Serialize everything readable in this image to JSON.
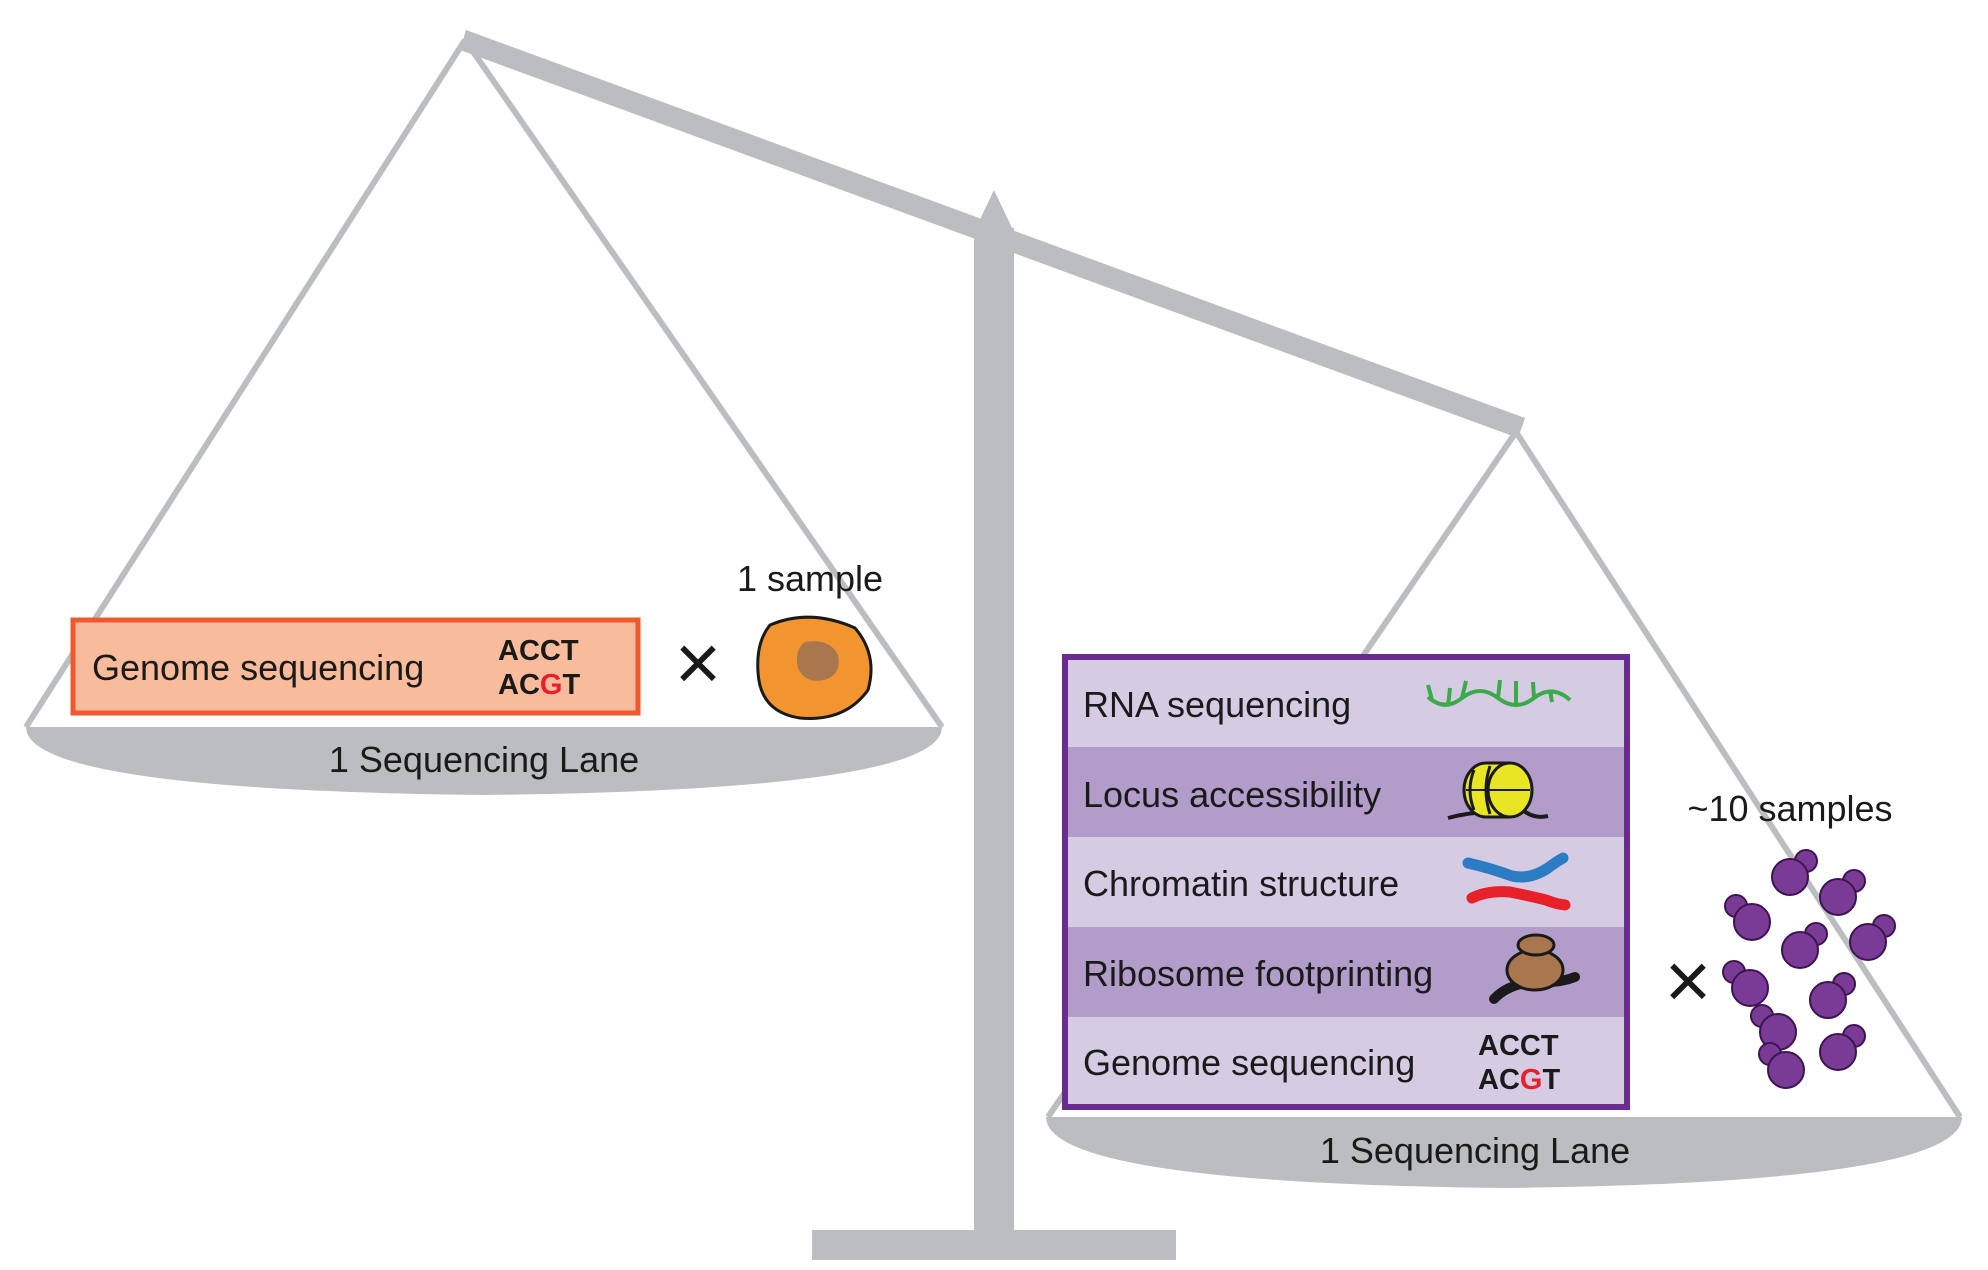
{
  "left_pan": {
    "assay": {
      "label": "Genome sequencing",
      "seq_line1": "ACCT",
      "seq_line2_prefix": "AC",
      "seq_line2_mut": "G",
      "seq_line2_suffix": "T"
    },
    "multiplier": "×",
    "sample_label": "1 sample",
    "lane_label": "1 Sequencing Lane"
  },
  "right_pan": {
    "assays": [
      {
        "label": "RNA sequencing",
        "icon": "rna-icon"
      },
      {
        "label": "Locus accessibility",
        "icon": "nucleosome-icon"
      },
      {
        "label": "Chromatin structure",
        "icon": "chromatin-icon"
      },
      {
        "label": "Ribosome footprinting",
        "icon": "ribosome-icon"
      },
      {
        "label": "Genome sequencing",
        "icon": "dna-sequence-icon"
      }
    ],
    "seq": {
      "seq_line1": "ACCT",
      "seq_line2_prefix": "AC",
      "seq_line2_mut": "G",
      "seq_line2_suffix": "T"
    },
    "multiplier": "×",
    "sample_label": "~10 samples",
    "lane_label": "1 Sequencing Lane"
  },
  "colors": {
    "scale_gray": "#bcbdc0",
    "left_box_fill": "#f8bc9c",
    "left_box_border": "#ee5a2f",
    "cell_fill": "#f29530",
    "nucleus_fill": "#a9764e",
    "right_box_border": "#6a2c8e",
    "row_light": "#d5cbe3",
    "row_dark": "#b29dca",
    "yeast_fill": "#7a3b96",
    "mutation_red": "#e8202a"
  }
}
